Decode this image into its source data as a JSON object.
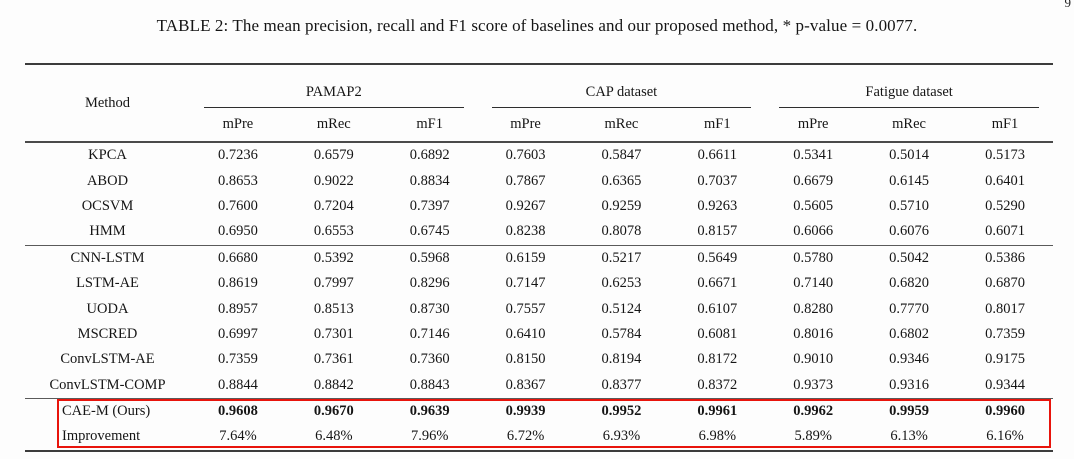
{
  "page": {
    "corner_page_number": "9"
  },
  "caption": "TABLE 2: The mean precision, recall and F1 score of baselines and our proposed method, * p-value = 0.0077.",
  "table": {
    "method_header": "Method",
    "groups": [
      {
        "label": "PAMAP2"
      },
      {
        "label": "CAP dataset"
      },
      {
        "label": "Fatigue dataset"
      }
    ],
    "sub_headers": [
      "mPre",
      "mRec",
      "mF1"
    ],
    "highlight_color": "#e8140c",
    "row_groups": [
      {
        "highlight": false,
        "rows": [
          {
            "method": "KPCA",
            "values": [
              "0.7236",
              "0.6579",
              "0.6892",
              "0.7603",
              "0.5847",
              "0.6611",
              "0.5341",
              "0.5014",
              "0.5173"
            ]
          },
          {
            "method": "ABOD",
            "values": [
              "0.8653",
              "0.9022",
              "0.8834",
              "0.7867",
              "0.6365",
              "0.7037",
              "0.6679",
              "0.6145",
              "0.6401"
            ]
          },
          {
            "method": "OCSVM",
            "values": [
              "0.7600",
              "0.7204",
              "0.7397",
              "0.9267",
              "0.9259",
              "0.9263",
              "0.5605",
              "0.5710",
              "0.5290"
            ]
          },
          {
            "method": "HMM",
            "values": [
              "0.6950",
              "0.6553",
              "0.6745",
              "0.8238",
              "0.8078",
              "0.8157",
              "0.6066",
              "0.6076",
              "0.6071"
            ]
          }
        ]
      },
      {
        "highlight": false,
        "rows": [
          {
            "method": "CNN-LSTM",
            "values": [
              "0.6680",
              "0.5392",
              "0.5968",
              "0.6159",
              "0.5217",
              "0.5649",
              "0.5780",
              "0.5042",
              "0.5386"
            ]
          },
          {
            "method": "LSTM-AE",
            "values": [
              "0.8619",
              "0.7997",
              "0.8296",
              "0.7147",
              "0.6253",
              "0.6671",
              "0.7140",
              "0.6820",
              "0.6870"
            ]
          },
          {
            "method": "UODA",
            "values": [
              "0.8957",
              "0.8513",
              "0.8730",
              "0.7557",
              "0.5124",
              "0.6107",
              "0.8280",
              "0.7770",
              "0.8017"
            ]
          },
          {
            "method": "MSCRED",
            "values": [
              "0.6997",
              "0.7301",
              "0.7146",
              "0.6410",
              "0.5784",
              "0.6081",
              "0.8016",
              "0.6802",
              "0.7359"
            ]
          },
          {
            "method": "ConvLSTM-AE",
            "values": [
              "0.7359",
              "0.7361",
              "0.7360",
              "0.8150",
              "0.8194",
              "0.8172",
              "0.9010",
              "0.9346",
              "0.9175"
            ]
          },
          {
            "method": "ConvLSTM-COMP",
            "values": [
              "0.8844",
              "0.8842",
              "0.8843",
              "0.8367",
              "0.8377",
              "0.8372",
              "0.9373",
              "0.9316",
              "0.9344"
            ]
          }
        ]
      },
      {
        "highlight": true,
        "rows": [
          {
            "method": "CAE-M (Ours)",
            "align": "left",
            "bold_values": true,
            "values": [
              "0.9608",
              "0.9670",
              "0.9639",
              "0.9939",
              "0.9952",
              "0.9961",
              "0.9962",
              "0.9959",
              "0.9960"
            ]
          },
          {
            "method": "Improvement",
            "align": "left",
            "values": [
              "7.64%",
              "6.48%",
              "7.96%",
              "6.72%",
              "6.93%",
              "6.98%",
              "5.89%",
              "6.13%",
              "6.16%"
            ]
          }
        ]
      }
    ]
  }
}
